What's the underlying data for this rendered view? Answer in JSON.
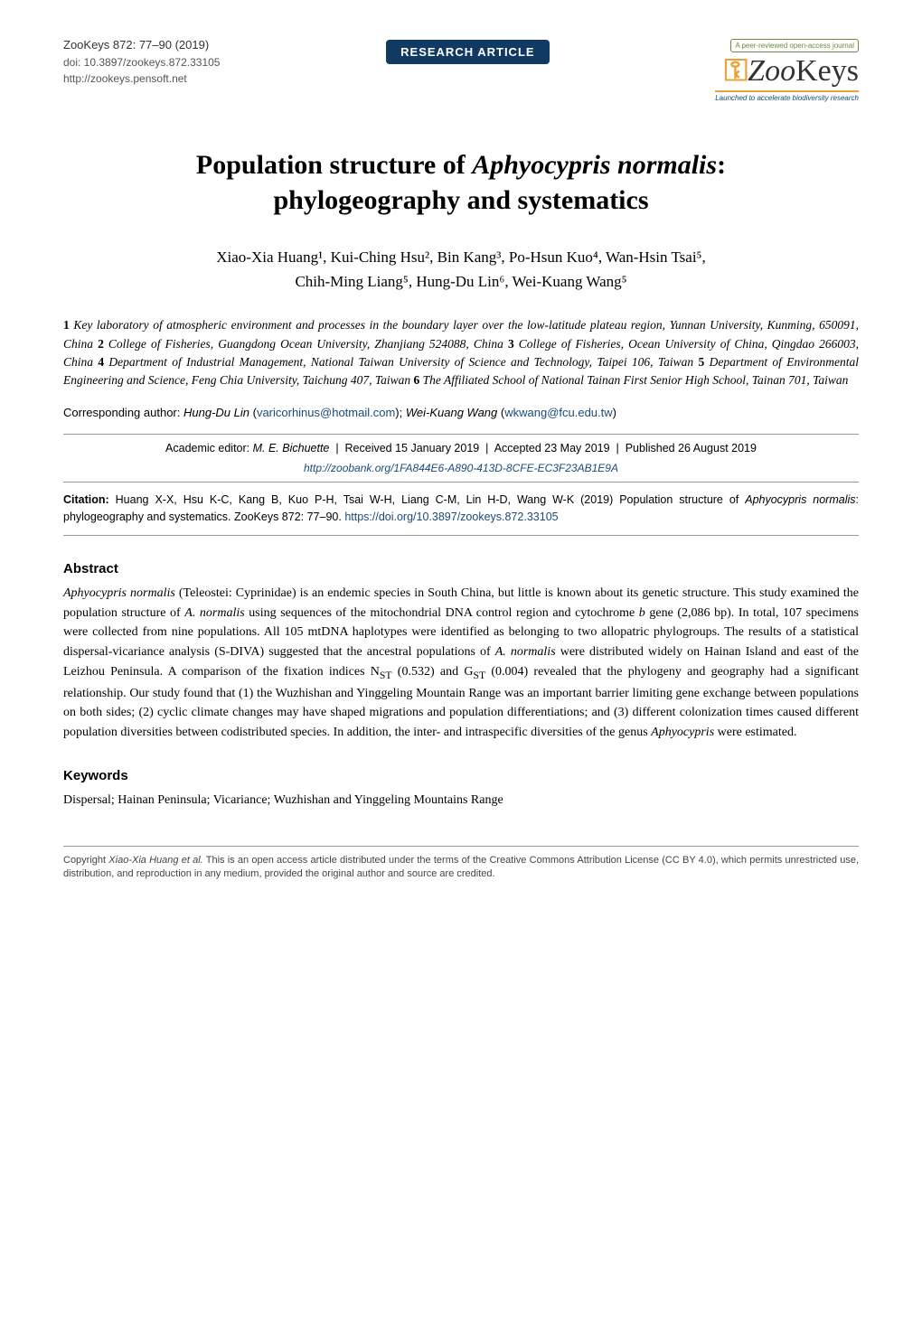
{
  "header": {
    "journal_line": "ZooKeys 872: 77–90 (2019)",
    "doi_line": "doi: 10.3897/zookeys.872.33105",
    "url_line": "http://zookeys.pensoft.net",
    "badge": "RESEARCH ARTICLE",
    "logo_small": "A peer-reviewed open-access journal",
    "logo_text_prefix": "Zoo",
    "logo_text_suffix": "Keys",
    "logo_sub": "Launched to accelerate biodiversity research"
  },
  "title_line1": "Population structure of ",
  "title_species": "Aphyocypris normalis",
  "title_line1_suffix": ":",
  "title_line2": "phylogeography and systematics",
  "authors_line1": "Xiao-Xia Huang¹, Kui-Ching Hsu², Bin Kang³, Po-Hsun Kuo⁴, Wan-Hsin Tsai⁵,",
  "authors_line2": "Chih-Ming Liang⁵, Hung-Du Lin⁶, Wei-Kuang Wang⁵",
  "affiliations": {
    "a1_num": "1",
    "a1": " Key laboratory of atmospheric environment and processes in the boundary layer over the low-latitude plateau region, Yunnan University, Kunming, 650091, China ",
    "a2_num": "2",
    "a2": " College of Fisheries, Guangdong Ocean University, Zhanjiang 524088, China ",
    "a3_num": "3",
    "a3": " College of Fisheries, Ocean University of China, Qingdao 266003, China ",
    "a4_num": "4",
    "a4": " Department of Industrial Management, National Taiwan University of Science and Technology, Taipei 106, Taiwan ",
    "a5_num": "5",
    "a5": " Department of Environmental Engineering and Science, Feng Chia University, Taichung 407, Taiwan ",
    "a6_num": "6",
    "a6": " The Affiliated School of National Tainan First Senior High School, Tainan 701, Taiwan"
  },
  "corresponding": {
    "label": "Corresponding author: ",
    "name1": "Hung-Du Lin",
    "email1": "varicorhinus@hotmail.com",
    "name2": "Wei-Kuang Wang",
    "email2": "wkwang@fcu.edu.tw"
  },
  "editor_line": {
    "prefix": "Academic editor: ",
    "editor": "M. E. Bichuette",
    "received": "Received 15 January 2019",
    "accepted": "Accepted 23 May 2019",
    "published": "Published 26 August 2019"
  },
  "zoobank": "http://zoobank.org/1FA844E6-A890-413D-8CFE-EC3F23AB1E9A",
  "citation": {
    "label": "Citation: ",
    "text_before_species": "Huang X-X, Hsu K-C, Kang B, Kuo P-H, Tsai W-H, Liang C-M, Lin H-D, Wang W-K (2019) Population structure of ",
    "species": "Aphyocypris normalis",
    "text_after_species": ": phylogeography and systematics. ZooKeys 872: 77–90. ",
    "doi": "https://doi.org/10.3897/zookeys.872.33105"
  },
  "abstract": {
    "heading": "Abstract",
    "p1_a": "Aphyocypris normalis",
    "p1_b": " (Teleostei: Cyprinidae) is an endemic species in South China, but little is known about its genetic structure. This study examined the population structure of ",
    "p1_c": "A. normalis",
    "p1_d": " using sequences of the mitochondrial DNA control region and cytochrome ",
    "p1_e": "b",
    "p1_f": " gene (2,086 bp). In total, 107 specimens were collected from nine populations. All 105 mtDNA haplotypes were identified as belonging to two allopatric phylogroups. The results of a statistical dispersal-vicariance analysis (S-DIVA) suggested that the ancestral populations of ",
    "p1_g": "A. normalis",
    "p1_h": " were distributed widely on Hainan Island and east of the Leizhou Peninsula. A comparison of the fixation indices N",
    "p1_i": "ST",
    "p1_j": " (0.532) and G",
    "p1_k": "ST",
    "p1_l": " (0.004) revealed that the phylogeny and geography had a significant relationship. Our study found that (1) the Wuzhishan and Yinggeling Mountain Range was an important barrier limiting gene exchange between populations on both sides; (2) cyclic climate changes may have shaped migrations and population differentiations; and (3) different colonization times caused different population diversities between codistributed species. In addition, the inter- and intraspecific diversities of the genus ",
    "p1_m": "Aphyocypris",
    "p1_n": " were estimated."
  },
  "keywords": {
    "heading": "Keywords",
    "text": "Dispersal; Hainan Peninsula; Vicariance; Wuzhishan and Yinggeling Mountains Range"
  },
  "footer": {
    "prefix": "Copyright ",
    "auth": "Xiao-Xia Huang et al.",
    "rest": " This is an open access article distributed under the terms of the Creative Commons Attribution License (CC BY 4.0), which permits unrestricted use, distribution, and reproduction in any medium, provided the original author and source are credited."
  },
  "colors": {
    "badge_bg": "#113a63",
    "link": "#1a4a7a",
    "logo_green": "#6f8a3f",
    "logo_orange": "#e8a33c"
  },
  "typography": {
    "title_fontsize": 30,
    "authors_fontsize": 17,
    "affiliations_fontsize": 13.5,
    "body_fontsize": 14,
    "footer_fontsize": 11
  }
}
